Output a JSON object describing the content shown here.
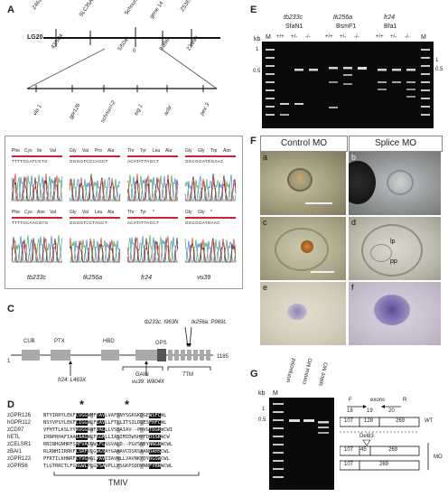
{
  "panels": {
    "a": "A",
    "b": "B",
    "c": "C",
    "d": "D",
    "e": "E",
    "f": "F",
    "g": "G"
  },
  "panelA": {
    "chromosome": "LG20",
    "top_markers": [
      "Z46277.1 cM",
      "SLC35A21",
      "Schnurri-2",
      "Z53675.6 cM",
      "gene 14"
    ],
    "bottom_values": [
      "43/504",
      "5/504",
      "0",
      "9/896",
      "23/896"
    ],
    "genes": [
      "vla 1",
      "gpr126",
      "schnurri-2",
      "eig 1",
      "acbr",
      "pex 3"
    ]
  },
  "panelB": {
    "labels": [
      "tb233c",
      "tk256a",
      "fr24",
      "vu39"
    ],
    "row1_codons": [
      [
        "Phe",
        "Cys",
        "Ile",
        "Val"
      ],
      [
        "Gly",
        "Val",
        "Pro",
        "Ala"
      ],
      [
        "Thr",
        "Tyr",
        "Leu",
        "Ala"
      ],
      [
        "Gly",
        "Gly",
        "Trp",
        "Asn"
      ]
    ],
    "row2_codons": [
      [
        "Phe",
        "Cys",
        "Asn",
        "Val"
      ],
      [
        "Gly",
        "Val",
        "Leu",
        "Ala"
      ],
      [
        "Thr",
        "Tyr",
        "*",
        ""
      ],
      [
        "Gly",
        "Gly",
        "*",
        ""
      ]
    ],
    "row1_seqs": [
      "TTTTGCATCGTG",
      "GGGGTCCCAGCT",
      "ACATATTAGCT",
      "GGCGGATGGAAC"
    ],
    "row2_seqs": [
      "TTTTGCAACGTG",
      "GGGGTCCTAGCT",
      "ACATATTAGCT",
      "GGCGGATGAAC"
    ]
  },
  "panelC": {
    "domains": [
      "CUB",
      "PTX",
      "HBD",
      "GPS",
      "GAIN",
      "7TM"
    ],
    "start": "1",
    "end": "1185",
    "mut_top": [
      "tb233c: I963N",
      "tk256a: P969L"
    ],
    "mut_bottom": [
      "fr24: L463X",
      "vu39: W804X"
    ]
  },
  "panelD": {
    "rows": [
      {
        "name": "zGPR126",
        "seq": "NTYIRRYLEKFCVGGWMFTAVLVAFSNYSGKGKDGEWSFCWL"
      },
      {
        "name": "hGPR112",
        "seq": "NSYVPSYLEKFCIGGWLFIAVLLFTLLITSILDQESFHFCWL"
      },
      {
        "name": "zCD97",
        "seq": "VFHTTLKSLYYAVGGAWFVALLLVSSAIAV--PHVGTDGRWCWI"
      },
      {
        "name": "hETL",
        "seq": "IRNPRHAFIAAIAAGWLFSGMLLIASIMIDWSHPFDDSSKWCW"
      },
      {
        "name": "zCELSR1",
        "seq": "RNINHGNHRFSHFVAVGWLFLSGVALD--PGVSNEYNNGNWCWL"
      },
      {
        "name": "zBAI1",
        "seq": "RLRNHIIRRKFLSRFVLGWGSAYGAAAVCDSRSAANDAHSCWL"
      },
      {
        "name": "zGPR123",
        "seq": "PFRTILKHNRFCYVGWGLPAVIIAVNLLVAVNKYDYDGSWCWL"
      },
      {
        "name": "zGPR56",
        "seq": "TLGTRRCTLFGRGWLPLGVSAVPLLYSGKPSDDVNNFYRNWCWL"
      }
    ],
    "region": "TMIV",
    "stars": "*"
  },
  "panelE": {
    "kb": "kb",
    "m": "M",
    "groups": [
      {
        "name": "tb233c",
        "enzyme": "SfaN1"
      },
      {
        "name": "tk256a",
        "enzyme": "BsmF1"
      },
      {
        "name": "fr24",
        "enzyme": "Bfa1"
      }
    ],
    "genotypes": [
      "+/+",
      "+/-",
      "-/-"
    ],
    "ticks_left": [
      "1",
      "0.5"
    ],
    "ticks_right": [
      "1",
      "0.5"
    ]
  },
  "panelF": {
    "headers": [
      "Control MO",
      "Splice MO"
    ],
    "sublabels": [
      "a",
      "b",
      "c",
      "d",
      "e",
      "f"
    ],
    "annotations": [
      "lp",
      "pp"
    ]
  },
  "panelG": {
    "kb": "kb",
    "m": "M",
    "lanes": [
      "uninjected",
      "control MO",
      "splice MO"
    ],
    "ticks": [
      "1",
      "0.5"
    ],
    "exon_header": "exons",
    "fwd": "F",
    "rev": "R",
    "exon_numbers": [
      "18",
      "19",
      "20"
    ],
    "wt_sizes": [
      "107",
      "128",
      "269"
    ],
    "wt": "WT",
    "del": "Del83",
    "mo_row1": [
      "107",
      "45",
      "269"
    ],
    "mo_row2": [
      "107",
      "269"
    ],
    "mo": "MO"
  },
  "colors": {
    "gel": "#0a0a0a",
    "band": "#e8e8e8",
    "trace_g": "#222",
    "trace_c": "#2a6fd6",
    "trace_a": "#2e9d3a",
    "trace_t": "#d62a2a",
    "highlight": "#111"
  }
}
